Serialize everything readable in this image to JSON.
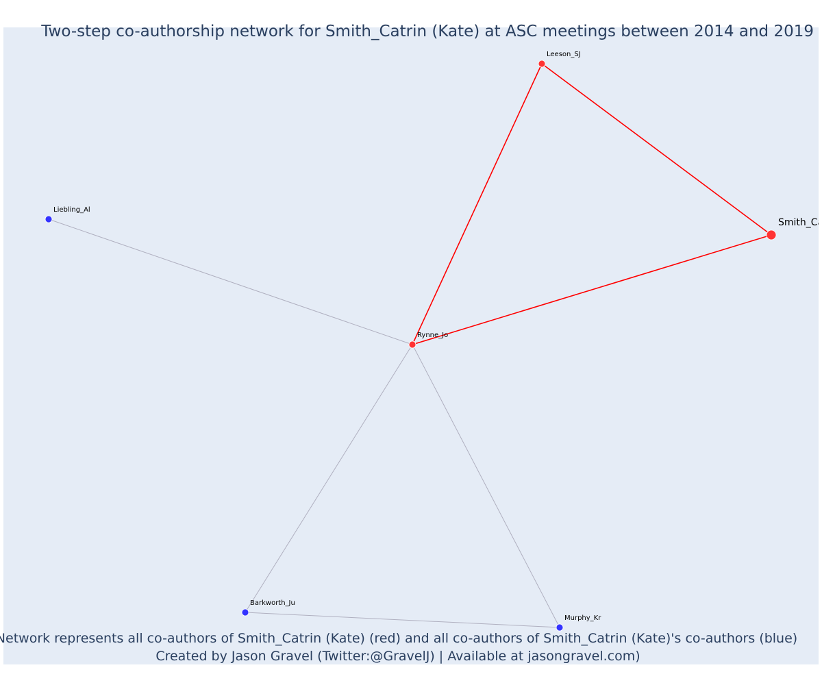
{
  "title": "Two-step co-authorship network for Smith_Catrin (Kate) at ASC meetings between 2014 and 2019",
  "caption": {
    "line1": "Network represents all co-authors of Smith_Catrin (Kate) (red) and all co-authors of Smith_Catrin (Kate)'s co-authors (blue)",
    "line2": "Created by Jason Gravel (Twitter:@GravelJ) | Available at jasongravel.com)"
  },
  "colors": {
    "plot_background": "#e5ecf6",
    "red_node": "#ff3333",
    "blue_node": "#3333ff",
    "red_edge": "#ff0000",
    "grey_edge": "#b0b0c0",
    "text": "#2a3f5f"
  },
  "nodes": [
    {
      "id": "smith",
      "label": "Smith_Catrin (Kate)",
      "group": "red",
      "ego": true
    },
    {
      "id": "leeson",
      "label": "Leeson_SJ",
      "group": "red"
    },
    {
      "id": "rynne",
      "label": "Rynne_Jo",
      "group": "red"
    },
    {
      "id": "liebling",
      "label": "Liebling_Al",
      "group": "blue"
    },
    {
      "id": "barkworth",
      "label": "Barkworth_Ju",
      "group": "blue"
    },
    {
      "id": "murphy",
      "label": "Murphy_Kr",
      "group": "blue"
    }
  ],
  "edges": [
    {
      "source": "leeson",
      "target": "smith",
      "group": "red"
    },
    {
      "source": "leeson",
      "target": "rynne",
      "group": "red"
    },
    {
      "source": "rynne",
      "target": "smith",
      "group": "red"
    },
    {
      "source": "rynne",
      "target": "liebling",
      "group": "grey"
    },
    {
      "source": "rynne",
      "target": "barkworth",
      "group": "grey"
    },
    {
      "source": "rynne",
      "target": "murphy",
      "group": "grey"
    },
    {
      "source": "barkworth",
      "target": "murphy",
      "group": "grey"
    }
  ]
}
